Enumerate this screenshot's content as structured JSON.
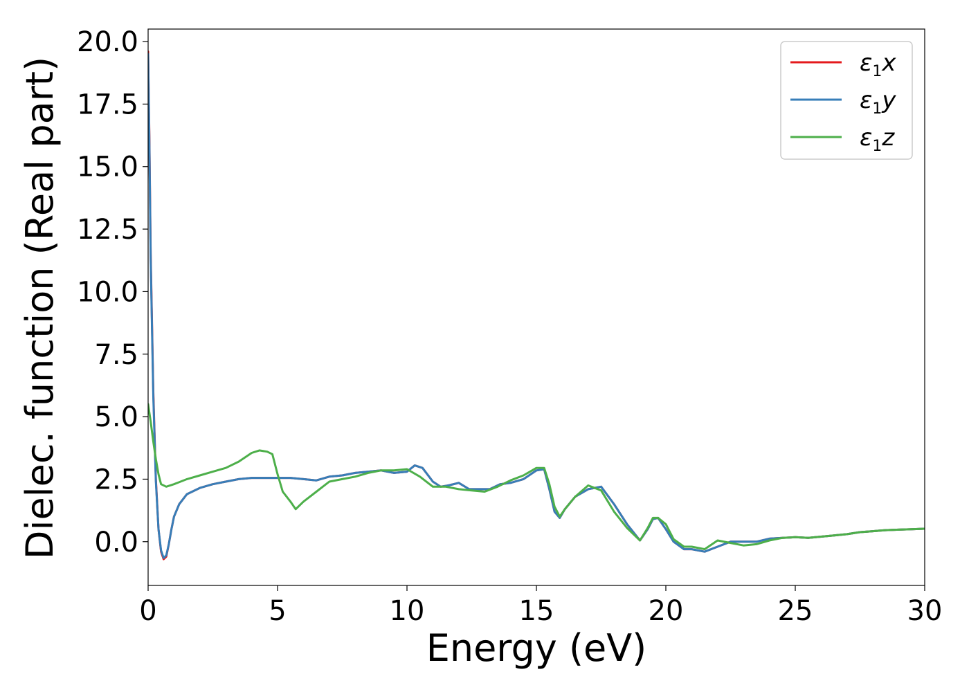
{
  "chart_data": {
    "type": "line",
    "xlabel": "Energy (eV)",
    "ylabel": "Dielec. function (Real part)",
    "xlim": [
      0,
      30
    ],
    "ylim": [
      -1.75,
      20.5
    ],
    "xticks": [
      "0",
      "5",
      "10",
      "15",
      "20",
      "25",
      "30"
    ],
    "yticks": [
      "0.0",
      "2.5",
      "5.0",
      "7.5",
      "10.0",
      "12.5",
      "15.0",
      "17.5",
      "20.0"
    ],
    "grid": false,
    "legend_position": "top-right",
    "series": [
      {
        "name": "ε1x",
        "legend_main": "ε",
        "legend_sub": "1",
        "legend_axis": "x",
        "color": "#e41a1c",
        "x": [
          0.0,
          0.05,
          0.1,
          0.2,
          0.3,
          0.4,
          0.5,
          0.6,
          0.7,
          0.8,
          0.9,
          1.0,
          1.2,
          1.5,
          2.0,
          2.5,
          3.0,
          3.5,
          4.0,
          4.5,
          5.0,
          5.5,
          6.0,
          6.5,
          7.0,
          7.5,
          8.0,
          8.5,
          9.0,
          9.5,
          10.0,
          10.3,
          10.6,
          11.0,
          11.3,
          11.6,
          12.0,
          12.4,
          12.8,
          13.2,
          13.6,
          14.0,
          14.5,
          15.0,
          15.3,
          15.5,
          15.7,
          15.9,
          16.1,
          16.5,
          17.0,
          17.5,
          18.0,
          18.5,
          19.0,
          19.3,
          19.5,
          19.7,
          20.0,
          20.3,
          20.7,
          21.0,
          21.5,
          22.0,
          22.5,
          23.0,
          23.5,
          24.0,
          24.5,
          25.0,
          25.5,
          26.0,
          26.5,
          27.0,
          27.5,
          28.0,
          28.5,
          29.0,
          29.5,
          30.0
        ],
        "y": [
          19.6,
          16.0,
          11.5,
          6.0,
          2.5,
          0.5,
          -0.4,
          -0.7,
          -0.6,
          -0.1,
          0.5,
          1.0,
          1.5,
          1.9,
          2.15,
          2.3,
          2.4,
          2.5,
          2.55,
          2.55,
          2.55,
          2.55,
          2.5,
          2.45,
          2.6,
          2.65,
          2.75,
          2.8,
          2.85,
          2.75,
          2.8,
          3.05,
          2.95,
          2.4,
          2.2,
          2.25,
          2.35,
          2.1,
          2.1,
          2.1,
          2.3,
          2.35,
          2.5,
          2.85,
          2.9,
          2.1,
          1.2,
          0.95,
          1.3,
          1.8,
          2.1,
          2.2,
          1.5,
          0.7,
          0.05,
          0.5,
          0.9,
          0.95,
          0.5,
          0.0,
          -0.3,
          -0.3,
          -0.4,
          -0.2,
          0.0,
          0.0,
          0.0,
          0.12,
          0.15,
          0.18,
          0.15,
          0.2,
          0.25,
          0.3,
          0.38,
          0.42,
          0.46,
          0.48,
          0.5,
          0.52
        ]
      },
      {
        "name": "ε1y",
        "legend_main": "ε",
        "legend_sub": "1",
        "legend_axis": "y",
        "color": "#377eb8",
        "x": [
          0.0,
          0.05,
          0.1,
          0.2,
          0.3,
          0.4,
          0.5,
          0.6,
          0.7,
          0.8,
          0.9,
          1.0,
          1.2,
          1.5,
          2.0,
          2.5,
          3.0,
          3.5,
          4.0,
          4.5,
          5.0,
          5.5,
          6.0,
          6.5,
          7.0,
          7.5,
          8.0,
          8.5,
          9.0,
          9.5,
          10.0,
          10.3,
          10.6,
          11.0,
          11.3,
          11.6,
          12.0,
          12.4,
          12.8,
          13.2,
          13.6,
          14.0,
          14.5,
          15.0,
          15.3,
          15.5,
          15.7,
          15.9,
          16.1,
          16.5,
          17.0,
          17.5,
          18.0,
          18.5,
          19.0,
          19.3,
          19.5,
          19.7,
          20.0,
          20.3,
          20.7,
          21.0,
          21.5,
          22.0,
          22.5,
          23.0,
          23.5,
          24.0,
          24.5,
          25.0,
          25.5,
          26.0,
          26.5,
          27.0,
          27.5,
          28.0,
          28.5,
          29.0,
          29.5,
          30.0
        ],
        "y": [
          19.5,
          15.8,
          11.3,
          5.8,
          2.4,
          0.5,
          -0.35,
          -0.65,
          -0.55,
          -0.1,
          0.5,
          1.0,
          1.5,
          1.9,
          2.15,
          2.3,
          2.4,
          2.5,
          2.55,
          2.55,
          2.55,
          2.55,
          2.5,
          2.45,
          2.6,
          2.65,
          2.75,
          2.8,
          2.85,
          2.75,
          2.8,
          3.05,
          2.95,
          2.4,
          2.2,
          2.25,
          2.35,
          2.1,
          2.1,
          2.1,
          2.3,
          2.35,
          2.5,
          2.85,
          2.9,
          2.1,
          1.2,
          0.95,
          1.3,
          1.8,
          2.1,
          2.2,
          1.5,
          0.7,
          0.05,
          0.5,
          0.9,
          0.95,
          0.5,
          0.0,
          -0.3,
          -0.3,
          -0.4,
          -0.2,
          0.0,
          0.0,
          0.0,
          0.12,
          0.15,
          0.18,
          0.15,
          0.2,
          0.25,
          0.3,
          0.38,
          0.42,
          0.46,
          0.48,
          0.5,
          0.52
        ]
      },
      {
        "name": "ε1z",
        "legend_main": "ε",
        "legend_sub": "1",
        "legend_axis": "z",
        "color": "#4daf4a",
        "x": [
          0.0,
          0.1,
          0.2,
          0.3,
          0.4,
          0.5,
          0.7,
          1.0,
          1.5,
          2.0,
          2.5,
          3.0,
          3.5,
          4.0,
          4.3,
          4.6,
          4.8,
          5.0,
          5.2,
          5.5,
          5.7,
          6.0,
          6.5,
          7.0,
          7.5,
          8.0,
          8.5,
          9.0,
          9.5,
          10.0,
          10.5,
          11.0,
          11.5,
          12.0,
          12.5,
          13.0,
          13.5,
          14.0,
          14.5,
          15.0,
          15.3,
          15.5,
          15.7,
          15.9,
          16.1,
          16.5,
          17.0,
          17.5,
          18.0,
          18.5,
          19.0,
          19.3,
          19.5,
          19.7,
          20.0,
          20.3,
          20.7,
          21.0,
          21.5,
          22.0,
          22.5,
          23.0,
          23.5,
          24.0,
          24.5,
          25.0,
          25.5,
          26.0,
          26.5,
          27.0,
          27.5,
          28.0,
          28.5,
          29.0,
          29.5,
          30.0
        ],
        "y": [
          5.5,
          4.8,
          4.0,
          3.3,
          2.7,
          2.3,
          2.2,
          2.3,
          2.5,
          2.65,
          2.8,
          2.95,
          3.2,
          3.55,
          3.65,
          3.6,
          3.5,
          2.7,
          2.0,
          1.6,
          1.3,
          1.6,
          2.0,
          2.4,
          2.5,
          2.6,
          2.75,
          2.85,
          2.85,
          2.9,
          2.6,
          2.2,
          2.2,
          2.1,
          2.05,
          2.0,
          2.2,
          2.45,
          2.65,
          2.95,
          2.95,
          2.3,
          1.4,
          1.0,
          1.3,
          1.8,
          2.25,
          2.05,
          1.2,
          0.55,
          0.05,
          0.55,
          0.95,
          0.95,
          0.7,
          0.1,
          -0.2,
          -0.2,
          -0.3,
          0.05,
          -0.05,
          -0.15,
          -0.1,
          0.05,
          0.15,
          0.18,
          0.15,
          0.2,
          0.25,
          0.3,
          0.38,
          0.42,
          0.46,
          0.48,
          0.5,
          0.52
        ]
      }
    ]
  }
}
